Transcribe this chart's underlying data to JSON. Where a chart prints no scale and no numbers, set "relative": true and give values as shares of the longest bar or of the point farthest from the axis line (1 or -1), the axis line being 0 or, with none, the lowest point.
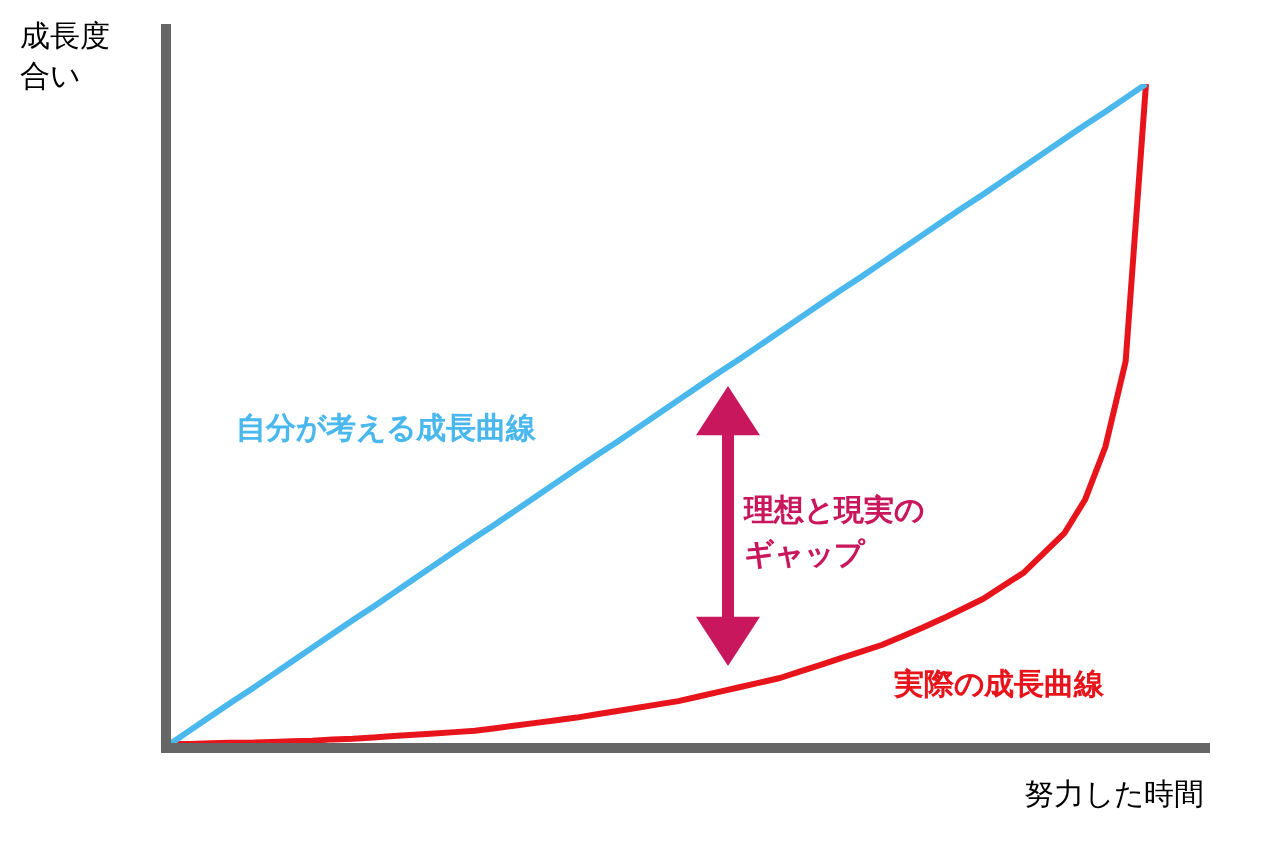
{
  "chart_data": {
    "type": "line",
    "relative": true,
    "ylabel": "成長度合い",
    "xlabel": "努力した時間",
    "annotations": [
      "理想と現実のギャップ"
    ],
    "marker": "none",
    "line_style": "solid",
    "legend": false,
    "categories": [
      null,
      null,
      null,
      null,
      null,
      null,
      null,
      null,
      null,
      null,
      null,
      null,
      null,
      null,
      null,
      null,
      null,
      null,
      null,
      null,
      null,
      null,
      null,
      null,
      null,
      null,
      null,
      null,
      null,
      null,
      null,
      null,
      null,
      null,
      null,
      null,
      null,
      null,
      null,
      null,
      null,
      null,
      null,
      null,
      null,
      null,
      null,
      null,
      null
    ],
    "series": [
      {
        "name": "自分が考える成長曲線",
        "color": "#4ab8ec",
        "values": [
          0,
          0.021,
          0.042,
          0.063,
          0.083,
          0.104,
          0.125,
          0.146,
          0.167,
          0.188,
          0.208,
          0.229,
          0.25,
          0.271,
          0.292,
          0.313,
          0.333,
          0.354,
          0.375,
          0.396,
          0.417,
          0.438,
          0.458,
          0.479,
          0.5,
          0.521,
          0.542,
          0.563,
          0.583,
          0.604,
          0.625,
          0.646,
          0.667,
          0.688,
          0.708,
          0.729,
          0.75,
          0.771,
          0.792,
          0.813,
          0.833,
          0.854,
          0.875,
          0.896,
          0.917,
          0.938,
          0.958,
          0.979,
          1
        ]
      },
      {
        "name": "実際の成長曲線",
        "color": "#e8141c",
        "values": [
          0,
          0,
          0.001,
          0.002,
          0.002,
          0.003,
          0.004,
          0.005,
          0.007,
          0.008,
          0.01,
          0.012,
          0.014,
          0.016,
          0.018,
          0.02,
          0.024,
          0.028,
          0.032,
          0.036,
          0.04,
          0.045,
          0.05,
          0.055,
          0.06,
          0.065,
          0.072,
          0.079,
          0.086,
          0.093,
          0.1,
          0.11,
          0.12,
          0.13,
          0.14,
          0.15,
          0.163,
          0.176,
          0.19,
          0.205,
          0.22,
          0.24,
          0.26,
          0.29,
          0.32,
          0.37,
          0.45,
          0.58,
          1
        ]
      }
    ]
  }
}
